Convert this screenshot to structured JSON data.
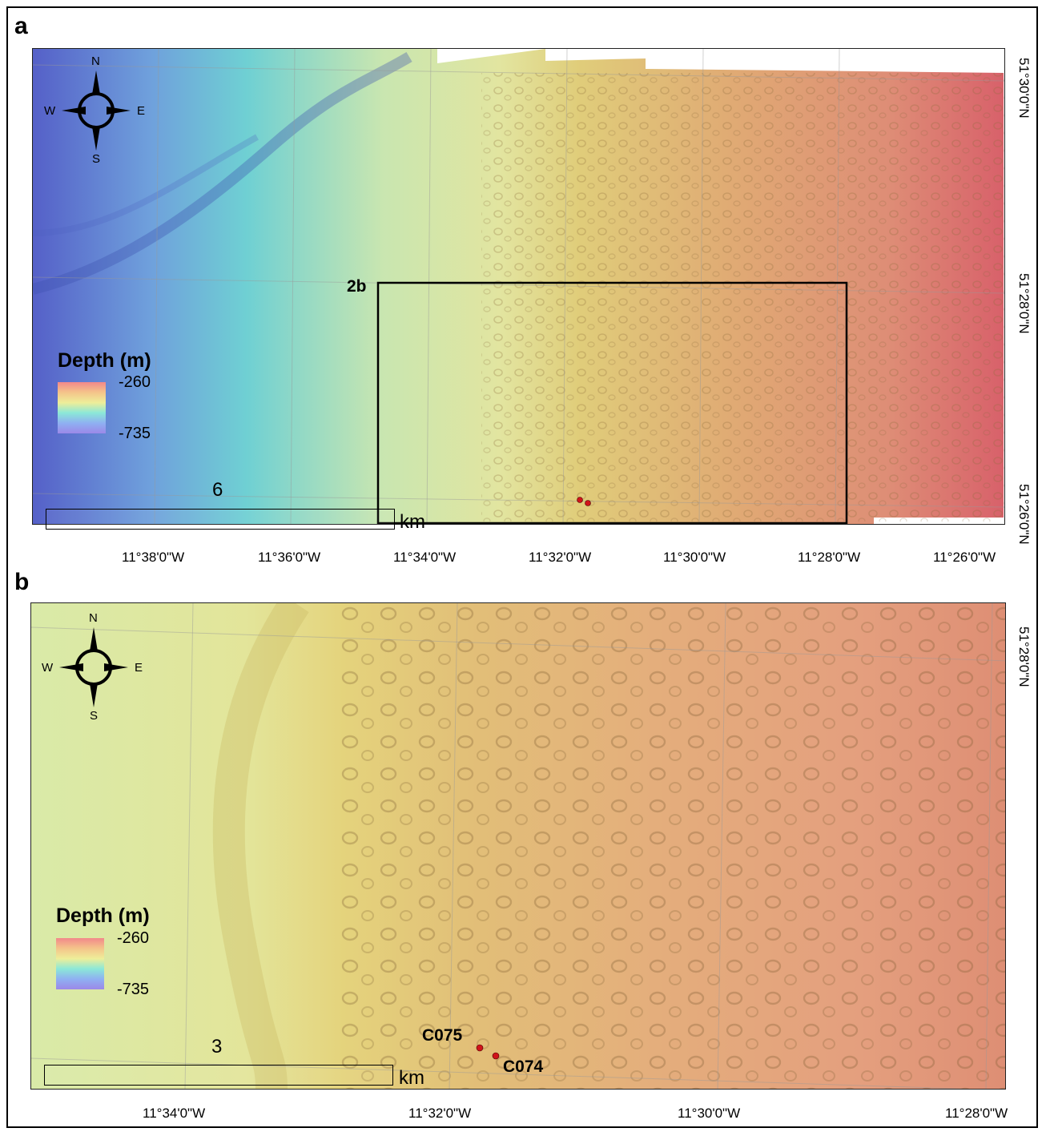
{
  "panels": [
    {
      "letter": "a",
      "lon_ticks": [
        "11°38'0\"W",
        "11°36'0\"W",
        "11°34'0\"W",
        "11°32'0\"W",
        "11°30'0\"W",
        "11°28'0\"W",
        "11°26'0\"W"
      ],
      "lat_ticks": [
        "51°30'0\"N",
        "51°28'0\"N",
        "51°26'0\"N"
      ],
      "legend": {
        "title": "Depth (m)",
        "max": "-260",
        "min": "-735"
      },
      "scale_bar": {
        "value": "6",
        "unit": "km"
      },
      "inset_label": "2b",
      "compass": {
        "n": "N",
        "s": "S",
        "e": "E",
        "w": "W"
      }
    },
    {
      "letter": "b",
      "lon_ticks": [
        "11°34'0\"W",
        "11°32'0\"W",
        "11°30'0\"W",
        "11°28'0\"W"
      ],
      "lat_ticks": [
        "51°28'0\"N"
      ],
      "legend": {
        "title": "Depth (m)",
        "max": "-260",
        "min": "-735"
      },
      "scale_bar": {
        "value": "3",
        "unit": "km"
      },
      "sites": [
        "C075",
        "C074"
      ],
      "compass": {
        "n": "N",
        "s": "S",
        "e": "E",
        "w": "W"
      }
    }
  ],
  "colors": {
    "deep": "#5a6bd0",
    "mid_deep": "#63c9d6",
    "mid": "#d9e69a",
    "shallow_mid": "#e3b76a",
    "shallow": "#e0606a",
    "site_marker": "#d0141a"
  }
}
